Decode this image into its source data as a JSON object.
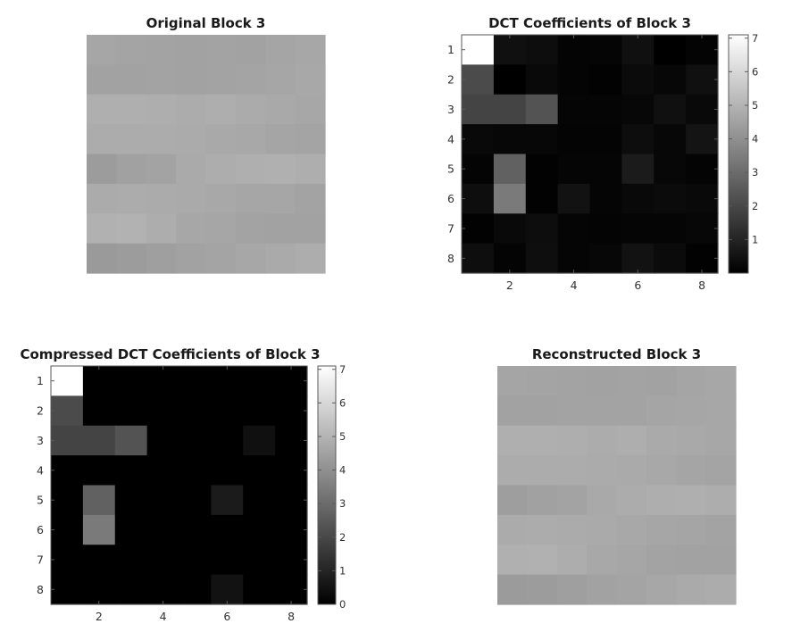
{
  "chart_data": [
    {
      "type": "heatmap",
      "title": "Original Block 3",
      "colormap": "gray",
      "axes_visible": false,
      "colorbar": false,
      "clim": [
        0,
        255
      ],
      "values": [
        [
          166,
          164,
          163,
          162,
          163,
          162,
          165,
          167
        ],
        [
          162,
          162,
          163,
          162,
          163,
          164,
          166,
          168
        ],
        [
          175,
          175,
          174,
          172,
          174,
          171,
          169,
          167
        ],
        [
          172,
          172,
          172,
          171,
          169,
          168,
          165,
          164
        ],
        [
          156,
          161,
          163,
          170,
          173,
          175,
          176,
          174
        ],
        [
          171,
          172,
          171,
          170,
          168,
          166,
          166,
          163
        ],
        [
          177,
          178,
          173,
          167,
          166,
          163,
          162,
          162
        ],
        [
          154,
          156,
          159,
          162,
          164,
          167,
          170,
          173
        ]
      ]
    },
    {
      "type": "heatmap",
      "title": "DCT Coefficients of Block 3",
      "colormap": "gray",
      "colorbar": true,
      "clim": [
        0,
        7.1
      ],
      "xticks": [
        "2",
        "4",
        "6",
        "8"
      ],
      "yticks": [
        "1",
        "2",
        "3",
        "4",
        "5",
        "6",
        "7",
        "8"
      ],
      "cbticks": [
        "1",
        "2",
        "3",
        "4",
        "5",
        "6",
        "7"
      ],
      "values": [
        [
          7.1,
          0.45,
          0.35,
          0.1,
          0.15,
          0.45,
          0.0,
          0.1
        ],
        [
          2.1,
          0.0,
          0.25,
          0.1,
          0.05,
          0.3,
          0.2,
          0.45
        ],
        [
          1.9,
          1.9,
          2.3,
          0.15,
          0.15,
          0.2,
          0.45,
          0.25
        ],
        [
          0.25,
          0.2,
          0.2,
          0.1,
          0.1,
          0.35,
          0.2,
          0.55
        ],
        [
          0.1,
          2.7,
          0.05,
          0.15,
          0.15,
          0.75,
          0.2,
          0.1
        ],
        [
          0.4,
          3.4,
          0.05,
          0.5,
          0.15,
          0.25,
          0.3,
          0.25
        ],
        [
          0.05,
          0.25,
          0.35,
          0.15,
          0.1,
          0.15,
          0.15,
          0.2
        ],
        [
          0.4,
          0.1,
          0.4,
          0.15,
          0.2,
          0.5,
          0.3,
          0.05
        ]
      ]
    },
    {
      "type": "heatmap",
      "title": "Compressed DCT Coefficients of Block 3",
      "colormap": "gray",
      "colorbar": true,
      "clim": [
        0,
        7.1
      ],
      "xticks": [
        "2",
        "4",
        "6",
        "8"
      ],
      "yticks": [
        "1",
        "2",
        "3",
        "4",
        "5",
        "6",
        "7",
        "8"
      ],
      "cbticks": [
        "0",
        "1",
        "2",
        "3",
        "4",
        "5",
        "6",
        "7"
      ],
      "values": [
        [
          7.1,
          0,
          0,
          0,
          0,
          0,
          0,
          0
        ],
        [
          2.1,
          0,
          0,
          0,
          0,
          0,
          0,
          0
        ],
        [
          1.9,
          1.9,
          2.3,
          0,
          0,
          0,
          0.45,
          0
        ],
        [
          0,
          0,
          0,
          0,
          0,
          0,
          0,
          0
        ],
        [
          0,
          2.7,
          0,
          0,
          0,
          0.75,
          0,
          0
        ],
        [
          0,
          3.4,
          0,
          0,
          0,
          0,
          0,
          0
        ],
        [
          0,
          0,
          0,
          0,
          0,
          0,
          0,
          0
        ],
        [
          0,
          0,
          0,
          0,
          0,
          0.5,
          0,
          0
        ]
      ]
    },
    {
      "type": "heatmap",
      "title": "Reconstructed Block 3",
      "colormap": "gray",
      "axes_visible": false,
      "colorbar": false,
      "clim": [
        0,
        255
      ],
      "values": [
        [
          165,
          164,
          163,
          162,
          163,
          162,
          165,
          167
        ],
        [
          162,
          162,
          163,
          163,
          163,
          165,
          166,
          167
        ],
        [
          175,
          175,
          174,
          172,
          174,
          170,
          169,
          167
        ],
        [
          172,
          172,
          172,
          171,
          170,
          168,
          165,
          164
        ],
        [
          158,
          161,
          163,
          169,
          172,
          174,
          175,
          173
        ],
        [
          171,
          172,
          171,
          170,
          168,
          166,
          165,
          163
        ],
        [
          176,
          177,
          173,
          168,
          166,
          163,
          162,
          162
        ],
        [
          155,
          156,
          159,
          162,
          164,
          167,
          170,
          172
        ]
      ]
    }
  ]
}
